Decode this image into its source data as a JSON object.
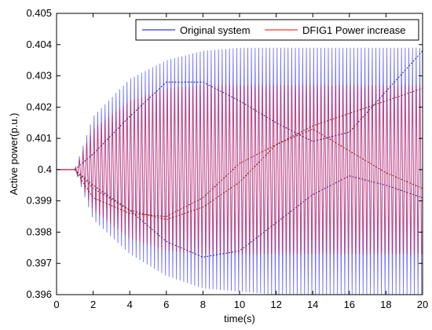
{
  "chart_data": {
    "type": "line",
    "title": "",
    "xlabel": "time(s)",
    "ylabel": "Active power(p.u.)",
    "xlim": [
      0,
      20
    ],
    "ylim": [
      0.396,
      0.405
    ],
    "xticks": [
      0,
      2,
      4,
      6,
      8,
      10,
      12,
      14,
      16,
      18,
      20
    ],
    "yticks": [
      0.396,
      0.397,
      0.398,
      0.399,
      0.4,
      0.401,
      0.402,
      0.403,
      0.404,
      0.405
    ],
    "xtick_labels": [
      "0",
      "2",
      "4",
      "6",
      "8",
      "10",
      "12",
      "14",
      "16",
      "18",
      "20"
    ],
    "ytick_labels": [
      "0.396",
      "0.397",
      "0.398",
      "0.399",
      "0.4",
      "0.401",
      "0.402",
      "0.403",
      "0.404",
      "0.405"
    ],
    "grid": false,
    "legend_position": "top-right",
    "disturbance_time": 1.0,
    "oscillation_period": 0.2,
    "series": [
      {
        "name": "Original system",
        "color": "#0000ff",
        "baseline": 0.4,
        "envelope_time": [
          1,
          2,
          4,
          6,
          8,
          10,
          12,
          14,
          16,
          18,
          20
        ],
        "envelope_upper": [
          0.4,
          0.4017,
          0.4029,
          0.4035,
          0.4038,
          0.4039,
          0.4039,
          0.4039,
          0.4039,
          0.4039,
          0.4039
        ],
        "envelope_lower": [
          0.4,
          0.3984,
          0.3973,
          0.3966,
          0.3962,
          0.3961,
          0.396,
          0.396,
          0.396,
          0.396,
          0.396
        ],
        "beat_upper": [
          0.4,
          0.4005,
          0.4017,
          0.4028,
          0.4028,
          0.4022,
          0.4015,
          0.4009,
          0.4012,
          0.4025,
          0.4038
        ],
        "beat_lower": [
          0.4,
          0.3995,
          0.3987,
          0.3977,
          0.3972,
          0.3974,
          0.3983,
          0.3992,
          0.3998,
          0.3995,
          0.3991
        ]
      },
      {
        "name": "DFIG1 Power increase",
        "color": "#ff0000",
        "baseline": 0.4,
        "envelope_time": [
          1,
          2,
          4,
          6,
          8,
          10,
          12,
          14,
          16,
          18,
          20
        ],
        "envelope_upper": [
          0.4,
          0.4013,
          0.4022,
          0.4026,
          0.4027,
          0.4027,
          0.4027,
          0.4027,
          0.4027,
          0.4027,
          0.4027
        ],
        "envelope_lower": [
          0.4,
          0.3987,
          0.3978,
          0.3974,
          0.3973,
          0.3973,
          0.3973,
          0.3973,
          0.3973,
          0.3973,
          0.3973
        ],
        "beat_upper": [
          0.4,
          0.3991,
          0.3986,
          0.3985,
          0.3991,
          0.4002,
          0.4008,
          0.4014,
          0.4018,
          0.4022,
          0.4026
        ],
        "beat_lower": [
          0.4,
          0.3994,
          0.3987,
          0.3984,
          0.3988,
          0.3996,
          0.4008,
          0.4013,
          0.4006,
          0.3999,
          0.3994
        ]
      }
    ]
  }
}
